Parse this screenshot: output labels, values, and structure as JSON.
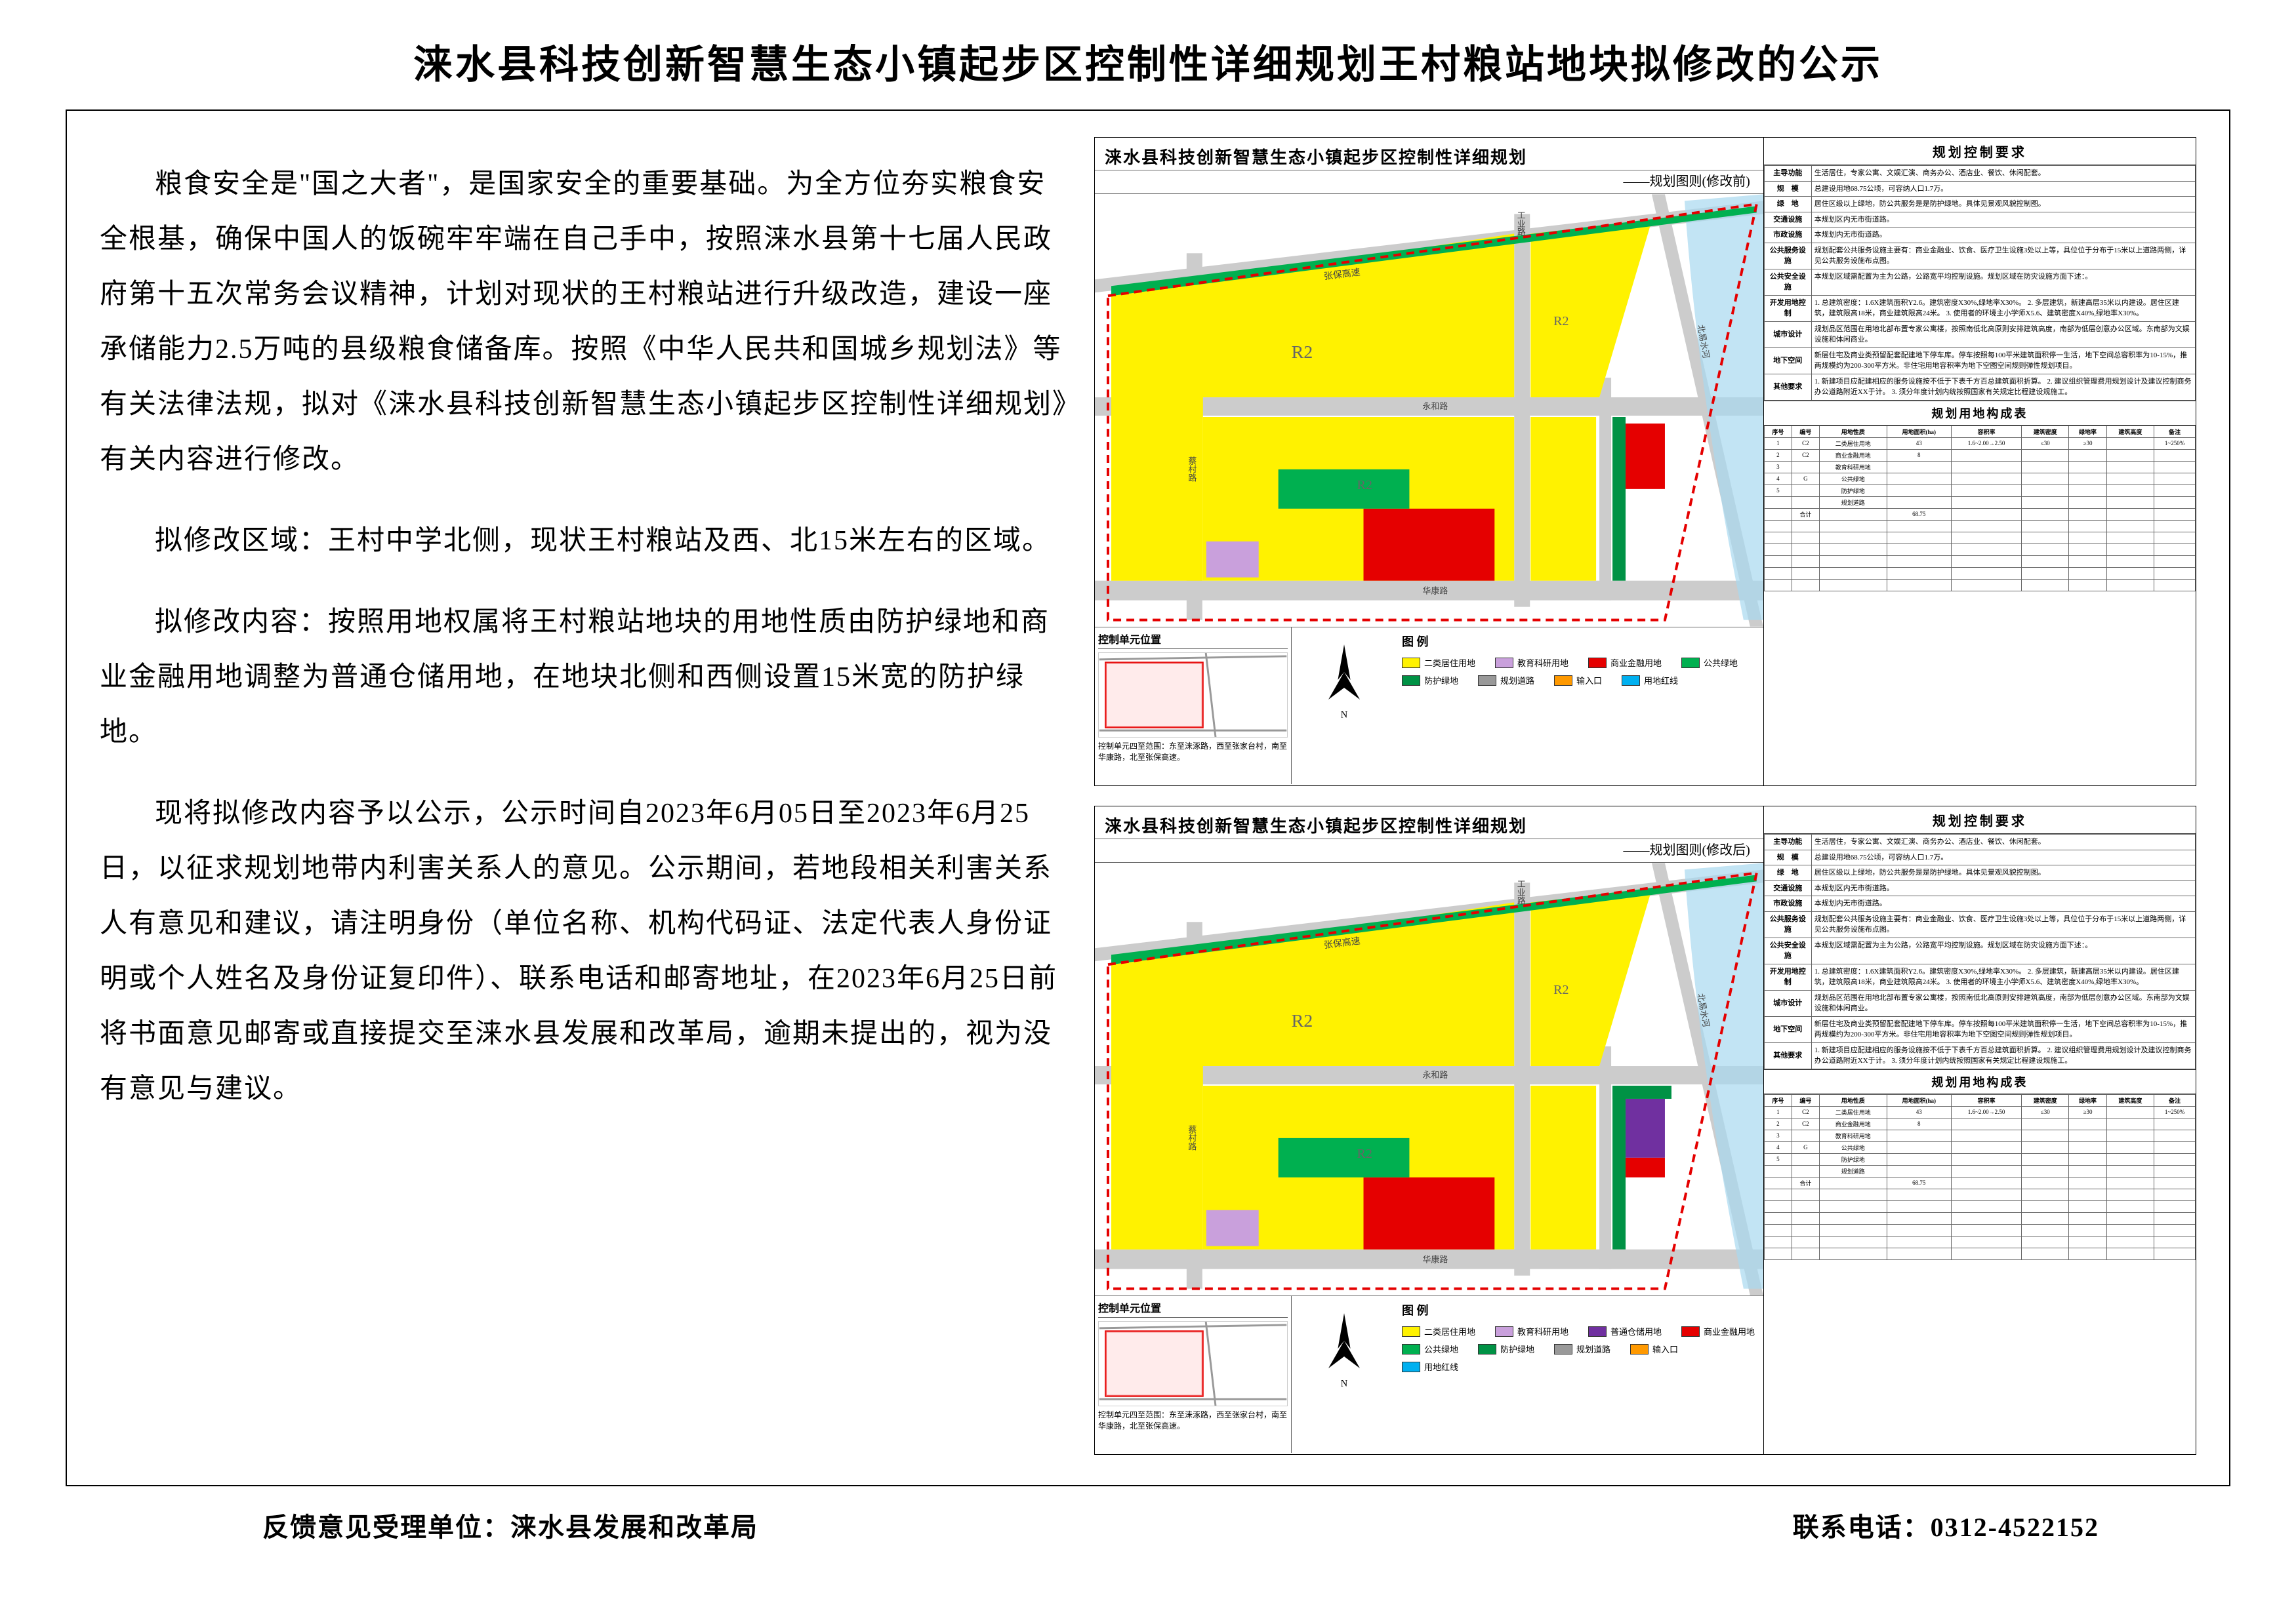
{
  "title": "涞水县科技创新智慧生态小镇起步区控制性详细规划王村粮站地块拟修改的公示",
  "paragraphs": {
    "p1": "粮食安全是\"国之大者\"，是国家安全的重要基础。为全方位夯实粮食安全根基，确保中国人的饭碗牢牢端在自己手中，按照涞水县第十七届人民政府第十五次常务会议精神，计划对现状的王村粮站进行升级改造，建设一座承储能力2.5万吨的县级粮食储备库。按照《中华人民共和国城乡规划法》等有关法律法规，拟对《涞水县科技创新智慧生态小镇起步区控制性详细规划》有关内容进行修改。",
    "p2": "拟修改区域：王村中学北侧，现状王村粮站及西、北15米左右的区域。",
    "p3": "拟修改内容：按照用地权属将王村粮站地块的用地性质由防护绿地和商业金融用地调整为普通仓储用地，在地块北侧和西侧设置15米宽的防护绿地。",
    "p4": "现将拟修改内容予以公示，公示时间自2023年6月05日至2023年6月25日，以征求规划地带内利害关系人的意见。公示期间，若地段相关利害关系人有意见和建议，请注明身份（单位名称、机构代码证、法定代表人身份证明或个人姓名及身份证复印件）、联系电话和邮寄地址，在2023年6月25日前将书面意见邮寄或直接提交至涞水县发展和改革局，逾期未提出的，视为没有意见与建议。"
  },
  "footer": {
    "dept_label": "反馈意见受理单位：涞水县发展和改革局",
    "phone_label": "联系电话：0312-4522152"
  },
  "panel_before": {
    "header": "涞水县科技创新智慧生态小镇起步区控制性详细规划",
    "sub": "——规划图则(修改前)",
    "loc_title": "控制单元位置",
    "loc_desc": "控制单元四至范围：东至涞涿路，西至张家台村，南至华康路，北至张保高速。",
    "legend_title": "图  例",
    "map_labels": {
      "northwest": "张保高速",
      "east_road": "涞涿路",
      "river": "北易水河",
      "n_s_road_l": "玉泉路",
      "n_s_road_r": "工业路",
      "e_w_road": "华康路",
      "yonghe": "永和路",
      "caicun": "蔡村路"
    }
  },
  "panel_after": {
    "header": "涞水县科技创新智慧生态小镇起步区控制性详细规划",
    "sub": "——规划图则(修改后)",
    "loc_title": "控制单元位置",
    "loc_desc": "控制单元四至范围：东至涞涿路，西至张家台村，南至华康路，北至张保高速。",
    "legend_title": "图  例"
  },
  "legend_items": [
    {
      "color": "#fff200",
      "label": "二类居住用地"
    },
    {
      "color": "#c9a0dc",
      "label": "教育科研用地"
    },
    {
      "color": "#e50000",
      "label": "商业金融用地"
    },
    {
      "color": "#00b050",
      "label": "公共绿地"
    },
    {
      "color": "#009245",
      "label": "防护绿地"
    },
    {
      "color": "#999999",
      "label": "规划道路"
    },
    {
      "color": "#ff9900",
      "label": "输入口"
    },
    {
      "color": "#00b0f0",
      "label": "用地红线"
    }
  ],
  "legend_items_after_extra": {
    "color": "#7030a0",
    "label": "普通仓储用地"
  },
  "ctrl_title": "规划控制要求",
  "ctrl_rows": [
    {
      "k": "主导功能",
      "v": "生活居住，专家公寓、文娱汇演、商务办公、酒店业、餐饮、休闲配套。"
    },
    {
      "k": "规　模",
      "v": "总建设用地68.75公顷，可容纳人口1.7万。"
    },
    {
      "k": "绿　地",
      "v": "居住区级以上绿地，防公共服务是是防护绿地。具体见景观风貌控制图。"
    },
    {
      "k": "交通设施",
      "v": "本规划区内无市街道路。"
    },
    {
      "k": "市政设施",
      "v": "本规划内无市街道路。"
    },
    {
      "k": "公共服务设施",
      "v": "规划配套公共服务设施主要有：商业金融业、饮食、医疗卫生设施3处以上等，具位位于分布于15米以上道路两侧，详见公共服务设施布点图。"
    },
    {
      "k": "公共安全设施",
      "v": "本规划区域需配置为主为公路，公路宽平均控制设施。规划区域在防灾设施方面下述：。"
    },
    {
      "k": "开发用地控制",
      "v": "1. 总建筑密度：1.6X建筑面积Y2.6。建筑密度X30%,绿地率X30%。 2. 多层建筑，新建高层35米以内建设。居住区建筑，建筑限高18米，商业建筑限高24米。 3. 使用者的环境主小学师X5.6、建筑密度X40%,绿地率X30%。"
    },
    {
      "k": "城市设计",
      "v": "规划品区范围在用地北部布置专家公寓楼，按照南低北高原则安排建筑高度，南部为低层创意办公区域。东南部为文娱设施和体闲商业。"
    },
    {
      "k": "地下空间",
      "v": "新层住宅及商业类预留配套配建地下停车库。停车按照每100平米建筑面积停一生活，地下空间总容积率为10-15%，推两规模约为200-300平方米。非住宅用地容积率为地下空图空间规则弹性规划项目。"
    },
    {
      "k": "其他要求",
      "v": "1. 新建项目应配建相应的服务设施按不低于下表千方百总建筑面积折算。 2. 建议组织管理费用规划设计及建议控制商务办公道路附近XX于计。 3. 须分年度计划内统按照国家有关规定比程建设规施工。"
    }
  ],
  "comp_title": "规划用地构成表",
  "comp_header": [
    "序号",
    "编号",
    "用地性质",
    "用地面积(ha)",
    "容积率",
    "建筑密度",
    "绿地率",
    "建筑高度",
    "备注"
  ],
  "comp_rows": [
    [
      "1",
      "C2",
      "二类居住用地",
      "43",
      "1.6~2.00→2.50",
      "≤30",
      "≥30",
      "",
      "1~250%"
    ],
    [
      "2",
      "C2",
      "商业金融用地",
      "8",
      "",
      "",
      "",
      "",
      ""
    ],
    [
      "3",
      "",
      "教育科研用地",
      "",
      "",
      "",
      "",
      "",
      ""
    ],
    [
      "4",
      "G",
      "公共绿地",
      "",
      "",
      "",
      "",
      "",
      ""
    ],
    [
      "5",
      "",
      "防护绿地",
      "",
      "",
      "",
      "",
      "",
      ""
    ],
    [
      "",
      "",
      "规划道路",
      "",
      "",
      "",
      "",
      "",
      ""
    ],
    [
      "",
      "合计",
      "",
      "68.75",
      "",
      "",
      "",
      "",
      ""
    ]
  ],
  "colors": {
    "residential": "#fff200",
    "edu": "#c9a0dc",
    "commercial": "#e50000",
    "green": "#00b050",
    "protect_green": "#009245",
    "warehouse": "#7030a0",
    "road": "#cccccc",
    "water": "#a8d8f0",
    "redline_dash": "#e50000"
  }
}
